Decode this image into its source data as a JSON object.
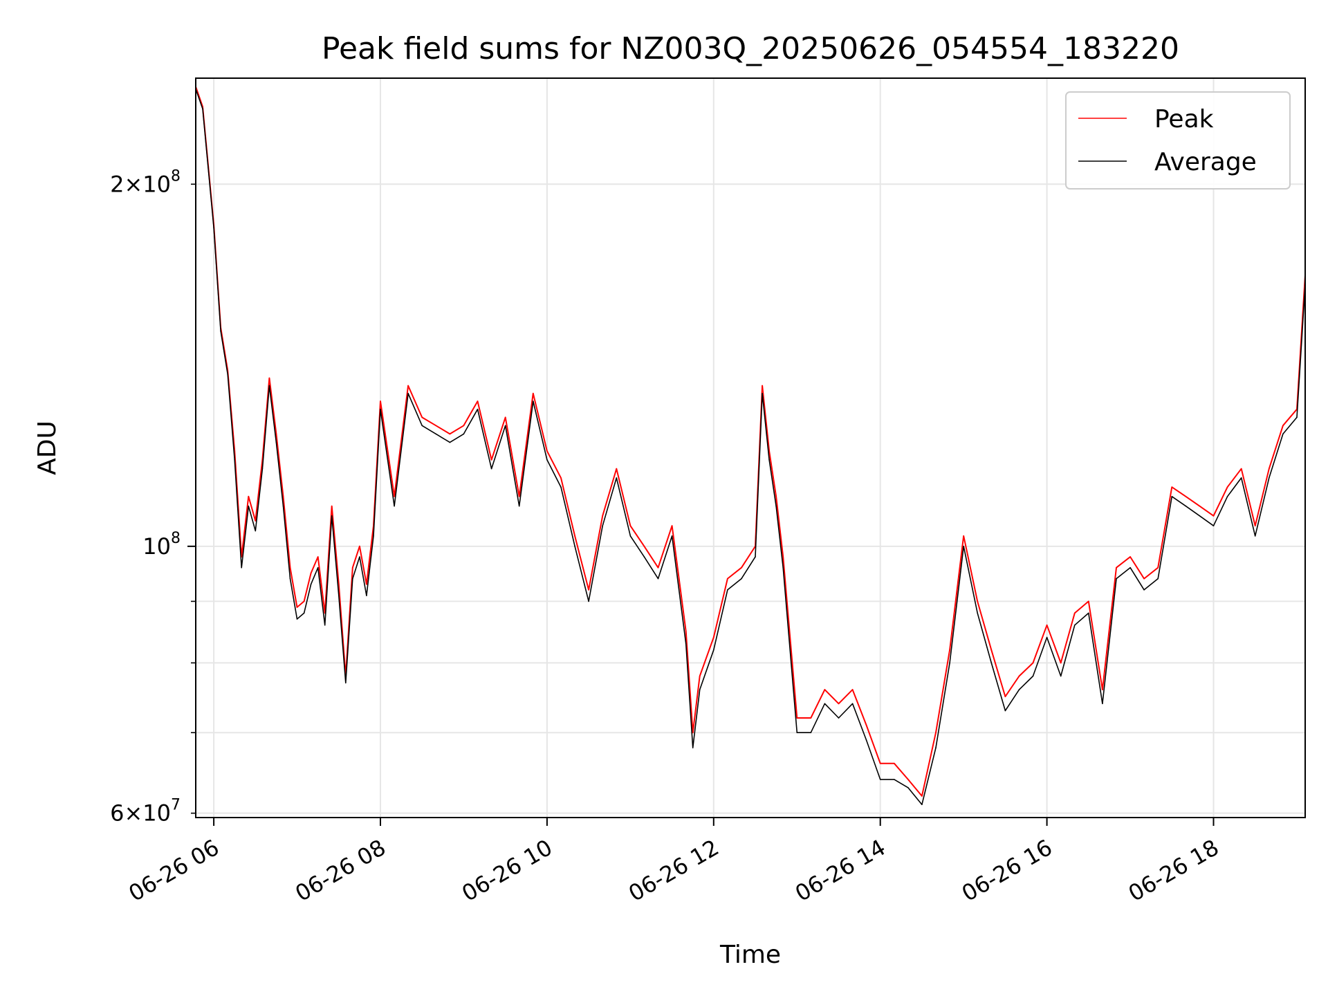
{
  "chart_data": {
    "type": "line",
    "title": "Peak field sums for NZ003Q_20250626_054554_183220",
    "xlabel": "Time",
    "ylabel": "ADU",
    "y_scale": "log",
    "ylim": [
      59500000,
      245000000
    ],
    "xlim": [
      "2025-06-26T05:47",
      "2025-06-26T19:06"
    ],
    "x_ticks": [
      {
        "value": "2025-06-26T06:00",
        "label": "06-26 06"
      },
      {
        "value": "2025-06-26T08:00",
        "label": "06-26 08"
      },
      {
        "value": "2025-06-26T10:00",
        "label": "06-26 10"
      },
      {
        "value": "2025-06-26T12:00",
        "label": "06-26 12"
      },
      {
        "value": "2025-06-26T14:00",
        "label": "06-26 14"
      },
      {
        "value": "2025-06-26T16:00",
        "label": "06-26 16"
      },
      {
        "value": "2025-06-26T18:00",
        "label": "06-26 18"
      }
    ],
    "y_ticks_major": [
      {
        "value": 100000000,
        "label_base": "10",
        "label_exp": "8"
      }
    ],
    "y_ticks_minor": [
      {
        "value": 60000000,
        "label_mant": "6",
        "label_exp": "7"
      },
      {
        "value": 70000000
      },
      {
        "value": 80000000
      },
      {
        "value": 90000000
      },
      {
        "value": 200000000,
        "label_mant": "2",
        "label_exp": "8"
      }
    ],
    "grid": true,
    "legend_position": "top-right",
    "series": [
      {
        "name": "Peak",
        "color": "#ff0000",
        "x": [
          "2025-06-26T05:47",
          "2025-06-26T05:52",
          "2025-06-26T06:00",
          "2025-06-26T06:05",
          "2025-06-26T06:10",
          "2025-06-26T06:15",
          "2025-06-26T06:20",
          "2025-06-26T06:25",
          "2025-06-26T06:30",
          "2025-06-26T06:35",
          "2025-06-26T06:40",
          "2025-06-26T06:45",
          "2025-06-26T06:50",
          "2025-06-26T06:55",
          "2025-06-26T07:00",
          "2025-06-26T07:05",
          "2025-06-26T07:10",
          "2025-06-26T07:15",
          "2025-06-26T07:20",
          "2025-06-26T07:25",
          "2025-06-26T07:30",
          "2025-06-26T07:35",
          "2025-06-26T07:40",
          "2025-06-26T07:45",
          "2025-06-26T07:50",
          "2025-06-26T07:55",
          "2025-06-26T08:00",
          "2025-06-26T08:10",
          "2025-06-26T08:20",
          "2025-06-26T08:30",
          "2025-06-26T08:40",
          "2025-06-26T08:50",
          "2025-06-26T09:00",
          "2025-06-26T09:10",
          "2025-06-26T09:20",
          "2025-06-26T09:30",
          "2025-06-26T09:40",
          "2025-06-26T09:50",
          "2025-06-26T10:00",
          "2025-06-26T10:10",
          "2025-06-26T10:20",
          "2025-06-26T10:30",
          "2025-06-26T10:40",
          "2025-06-26T10:50",
          "2025-06-26T11:00",
          "2025-06-26T11:10",
          "2025-06-26T11:20",
          "2025-06-26T11:30",
          "2025-06-26T11:40",
          "2025-06-26T11:45",
          "2025-06-26T11:50",
          "2025-06-26T12:00",
          "2025-06-26T12:10",
          "2025-06-26T12:20",
          "2025-06-26T12:30",
          "2025-06-26T12:35",
          "2025-06-26T12:40",
          "2025-06-26T12:45",
          "2025-06-26T12:50",
          "2025-06-26T13:00",
          "2025-06-26T13:10",
          "2025-06-26T13:20",
          "2025-06-26T13:30",
          "2025-06-26T13:40",
          "2025-06-26T13:50",
          "2025-06-26T14:00",
          "2025-06-26T14:10",
          "2025-06-26T14:20",
          "2025-06-26T14:30",
          "2025-06-26T14:40",
          "2025-06-26T14:50",
          "2025-06-26T15:00",
          "2025-06-26T15:10",
          "2025-06-26T15:20",
          "2025-06-26T15:30",
          "2025-06-26T15:40",
          "2025-06-26T15:50",
          "2025-06-26T16:00",
          "2025-06-26T16:10",
          "2025-06-26T16:20",
          "2025-06-26T16:30",
          "2025-06-26T16:40",
          "2025-06-26T16:50",
          "2025-06-26T17:00",
          "2025-06-26T17:10",
          "2025-06-26T17:20",
          "2025-06-26T17:30",
          "2025-06-26T17:40",
          "2025-06-26T17:50",
          "2025-06-26T18:00",
          "2025-06-26T18:10",
          "2025-06-26T18:20",
          "2025-06-26T18:30",
          "2025-06-26T18:40",
          "2025-06-26T18:50",
          "2025-06-26T19:00",
          "2025-06-26T19:06"
        ],
        "values": [
          241000000,
          232000000,
          185000000,
          152000000,
          140000000,
          120000000,
          98000000,
          110000000,
          105000000,
          118000000,
          138000000,
          124000000,
          110000000,
          96000000,
          89000000,
          90000000,
          95000000,
          98000000,
          88000000,
          108000000,
          93000000,
          78000000,
          96000000,
          100000000,
          93000000,
          104000000,
          132000000,
          110000000,
          136000000,
          128000000,
          126000000,
          124000000,
          126000000,
          132000000,
          118000000,
          128000000,
          110000000,
          134000000,
          120000000,
          114000000,
          102000000,
          92000000,
          106000000,
          116000000,
          104000000,
          100000000,
          96000000,
          104000000,
          85000000,
          70000000,
          78000000,
          84000000,
          94000000,
          96000000,
          100000000,
          136000000,
          120000000,
          110000000,
          98000000,
          72000000,
          72000000,
          76000000,
          74000000,
          76000000,
          71000000,
          66000000,
          66000000,
          64000000,
          62000000,
          70000000,
          82000000,
          102000000,
          90000000,
          82000000,
          75000000,
          78000000,
          80000000,
          86000000,
          80000000,
          88000000,
          90000000,
          76000000,
          96000000,
          98000000,
          94000000,
          96000000,
          112000000,
          110000000,
          108000000,
          106000000,
          112000000,
          116000000,
          104000000,
          116000000,
          126000000,
          130000000,
          168000000
        ]
      },
      {
        "name": "Average",
        "color": "#000000",
        "x": [
          "2025-06-26T05:47",
          "2025-06-26T05:52",
          "2025-06-26T06:00",
          "2025-06-26T06:05",
          "2025-06-26T06:10",
          "2025-06-26T06:15",
          "2025-06-26T06:20",
          "2025-06-26T06:25",
          "2025-06-26T06:30",
          "2025-06-26T06:35",
          "2025-06-26T06:40",
          "2025-06-26T06:45",
          "2025-06-26T06:50",
          "2025-06-26T06:55",
          "2025-06-26T07:00",
          "2025-06-26T07:05",
          "2025-06-26T07:10",
          "2025-06-26T07:15",
          "2025-06-26T07:20",
          "2025-06-26T07:25",
          "2025-06-26T07:30",
          "2025-06-26T07:35",
          "2025-06-26T07:40",
          "2025-06-26T07:45",
          "2025-06-26T07:50",
          "2025-06-26T07:55",
          "2025-06-26T08:00",
          "2025-06-26T08:10",
          "2025-06-26T08:20",
          "2025-06-26T08:30",
          "2025-06-26T08:40",
          "2025-06-26T08:50",
          "2025-06-26T09:00",
          "2025-06-26T09:10",
          "2025-06-26T09:20",
          "2025-06-26T09:30",
          "2025-06-26T09:40",
          "2025-06-26T09:50",
          "2025-06-26T10:00",
          "2025-06-26T10:10",
          "2025-06-26T10:20",
          "2025-06-26T10:30",
          "2025-06-26T10:40",
          "2025-06-26T10:50",
          "2025-06-26T11:00",
          "2025-06-26T11:10",
          "2025-06-26T11:20",
          "2025-06-26T11:30",
          "2025-06-26T11:40",
          "2025-06-26T11:45",
          "2025-06-26T11:50",
          "2025-06-26T12:00",
          "2025-06-26T12:10",
          "2025-06-26T12:20",
          "2025-06-26T12:30",
          "2025-06-26T12:35",
          "2025-06-26T12:40",
          "2025-06-26T12:45",
          "2025-06-26T12:50",
          "2025-06-26T13:00",
          "2025-06-26T13:10",
          "2025-06-26T13:20",
          "2025-06-26T13:30",
          "2025-06-26T13:40",
          "2025-06-26T13:50",
          "2025-06-26T14:00",
          "2025-06-26T14:10",
          "2025-06-26T14:20",
          "2025-06-26T14:30",
          "2025-06-26T14:40",
          "2025-06-26T14:50",
          "2025-06-26T15:00",
          "2025-06-26T15:10",
          "2025-06-26T15:20",
          "2025-06-26T15:30",
          "2025-06-26T15:40",
          "2025-06-26T15:50",
          "2025-06-26T16:00",
          "2025-06-26T16:10",
          "2025-06-26T16:20",
          "2025-06-26T16:30",
          "2025-06-26T16:40",
          "2025-06-26T16:50",
          "2025-06-26T17:00",
          "2025-06-26T17:10",
          "2025-06-26T17:20",
          "2025-06-26T17:30",
          "2025-06-26T17:40",
          "2025-06-26T17:50",
          "2025-06-26T18:00",
          "2025-06-26T18:10",
          "2025-06-26T18:20",
          "2025-06-26T18:30",
          "2025-06-26T18:40",
          "2025-06-26T18:50",
          "2025-06-26T19:00",
          "2025-06-26T19:06"
        ],
        "values": [
          240000000,
          231000000,
          184000000,
          151000000,
          139000000,
          118000000,
          96000000,
          108000000,
          103000000,
          116000000,
          136000000,
          122000000,
          108000000,
          94000000,
          87000000,
          88000000,
          93000000,
          96000000,
          86000000,
          106000000,
          91000000,
          77000000,
          94000000,
          98000000,
          91000000,
          102000000,
          130000000,
          108000000,
          134000000,
          126000000,
          124000000,
          122000000,
          124000000,
          130000000,
          116000000,
          126000000,
          108000000,
          132000000,
          118000000,
          112000000,
          100000000,
          90000000,
          104000000,
          114000000,
          102000000,
          98000000,
          94000000,
          102000000,
          83000000,
          68000000,
          76000000,
          82000000,
          92000000,
          94000000,
          98000000,
          134000000,
          118000000,
          108000000,
          96000000,
          70000000,
          70000000,
          74000000,
          72000000,
          74000000,
          69000000,
          64000000,
          64000000,
          63000000,
          61000000,
          68000000,
          80000000,
          100000000,
          88000000,
          80000000,
          73000000,
          76000000,
          78000000,
          84000000,
          78000000,
          86000000,
          88000000,
          74000000,
          94000000,
          96000000,
          92000000,
          94000000,
          110000000,
          108000000,
          106000000,
          104000000,
          110000000,
          114000000,
          102000000,
          114000000,
          124000000,
          128000000,
          165000000
        ]
      }
    ]
  }
}
